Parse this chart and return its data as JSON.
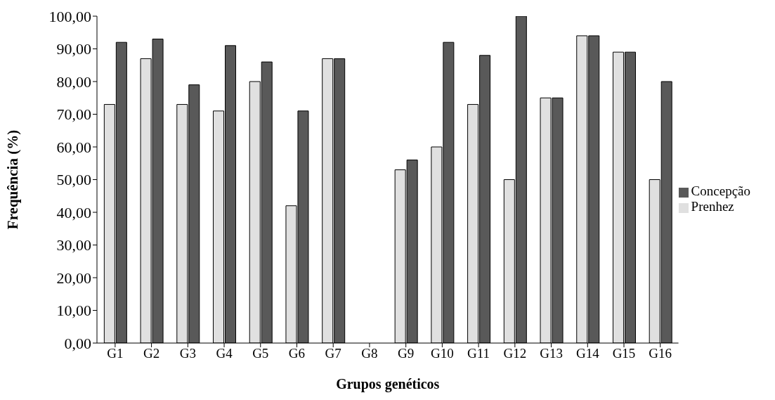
{
  "chart_data": {
    "type": "bar",
    "xlabel": "Grupos genéticos",
    "ylabel": "Frequência (%)",
    "categories": [
      "G1",
      "G2",
      "G3",
      "G4",
      "G5",
      "G6",
      "G7",
      "G8",
      "G9",
      "G10",
      "G11",
      "G12",
      "G13",
      "G14",
      "G15",
      "G16"
    ],
    "series": [
      {
        "name": "Prenhez",
        "color": "#e0e0e0",
        "values": [
          73,
          87,
          73,
          71,
          80,
          42,
          87,
          0,
          53,
          60,
          73,
          50,
          75,
          94,
          89,
          50
        ]
      },
      {
        "name": "Concepção",
        "color": "#595959",
        "values": [
          92,
          93,
          79,
          91,
          86,
          71,
          87,
          0,
          56,
          92,
          88,
          100,
          75,
          94,
          89,
          80
        ]
      }
    ],
    "ylim": [
      0,
      100
    ],
    "yticks": [
      {
        "value": 0,
        "label": "0,00"
      },
      {
        "value": 10,
        "label": "10,00"
      },
      {
        "value": 20,
        "label": "20,00"
      },
      {
        "value": 30,
        "label": "30,00"
      },
      {
        "value": 40,
        "label": "40,00"
      },
      {
        "value": 50,
        "label": "50,00"
      },
      {
        "value": 60,
        "label": "60,00"
      },
      {
        "value": 70,
        "label": "70,00"
      },
      {
        "value": 80,
        "label": "80,00"
      },
      {
        "value": 90,
        "label": "90,00"
      },
      {
        "value": 100,
        "label": "100,00"
      }
    ],
    "grid": false,
    "legend": "right"
  }
}
